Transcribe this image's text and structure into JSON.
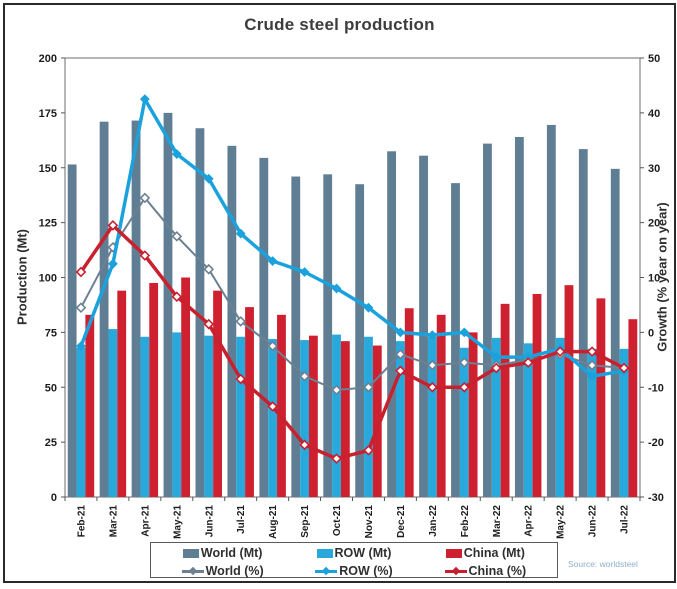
{
  "figure": {
    "title": "Crude steel production",
    "source": "Source: worldsteel"
  },
  "chart_data": {
    "type": "bar",
    "subtype": "grouped-bars-with-lines-dual-axis",
    "title": "Crude steel production",
    "categories": [
      "Feb-21",
      "Mar-21",
      "Apr-21",
      "May-21",
      "Jun-21",
      "Jul-21",
      "Aug-21",
      "Sep-21",
      "Oct-21",
      "Nov-21",
      "Dec-21",
      "Jan-22",
      "Feb-22",
      "Mar-22",
      "Apr-22",
      "May-22",
      "Jun-22",
      "Jul-22"
    ],
    "bar_series": [
      {
        "name": "World (Mt)",
        "color": "#5f7e93",
        "axis": "left",
        "values": [
          151.5,
          171,
          171.5,
          175,
          168,
          160,
          154.5,
          146,
          147,
          142.5,
          157.5,
          155.5,
          143,
          161,
          164,
          169.5,
          158.5,
          149.5
        ]
      },
      {
        "name": "ROW (Mt)",
        "color": "#29a8dc",
        "axis": "left",
        "values": [
          68,
          76.5,
          73,
          75,
          73.5,
          73,
          72,
          71.5,
          74,
          73,
          71,
          73,
          68,
          72.5,
          70,
          72.5,
          67.5,
          67.5
        ]
      },
      {
        "name": "China (Mt)",
        "color": "#cf2030",
        "axis": "left",
        "values": [
          83,
          94,
          97.5,
          100,
          94,
          86.5,
          83,
          73.5,
          71,
          69,
          86,
          83,
          75,
          88,
          92.5,
          96.5,
          90.5,
          81
        ]
      }
    ],
    "line_series": [
      {
        "name": "World (%)",
        "color": "#6d8092",
        "axis": "right",
        "marker": "diamond-open",
        "width": 2,
        "values": [
          4.5,
          15.5,
          24.5,
          17.5,
          11.5,
          2,
          -2.5,
          -8,
          -10.5,
          -10,
          -4,
          -6,
          -5.5,
          -6,
          -5,
          -4,
          -6,
          -6.5
        ]
      },
      {
        "name": "ROW (%)",
        "color": "#1ba2dc",
        "axis": "right",
        "marker": "diamond-solid",
        "width": 3.5,
        "values": [
          -2.5,
          12.5,
          42.5,
          32.5,
          28,
          18,
          13,
          11,
          8,
          4.5,
          0,
          -0.5,
          0,
          -4.5,
          -4.5,
          -3,
          -8,
          -7
        ]
      },
      {
        "name": "China (%)",
        "color": "#c9202e",
        "axis": "right",
        "marker": "diamond-open",
        "width": 3.5,
        "values": [
          11,
          19.5,
          14,
          6.5,
          1.5,
          -8.5,
          -13.5,
          -20.5,
          -23,
          -21.5,
          -7,
          -10,
          -10,
          -6.5,
          -5.5,
          -3.5,
          -3.5,
          -6.5
        ]
      }
    ],
    "left_axis": {
      "label": "Production (Mt)",
      "min": 0,
      "max": 200,
      "ticks": [
        0,
        25,
        50,
        75,
        100,
        125,
        150,
        175,
        200
      ]
    },
    "right_axis": {
      "label": "Growth (% year on year)",
      "min": -30,
      "max": 50,
      "ticks": [
        -30,
        -20,
        -10,
        0,
        10,
        20,
        30,
        40,
        50
      ]
    },
    "grid": false,
    "legend_position": "bottom",
    "legend": [
      {
        "label": "World (Mt)",
        "type": "bar",
        "color": "#5f7e93"
      },
      {
        "label": "ROW (Mt)",
        "type": "bar",
        "color": "#29a8dc"
      },
      {
        "label": "China (Mt)",
        "type": "bar",
        "color": "#cf2030"
      },
      {
        "label": "World (%)",
        "type": "line",
        "color": "#6d8092"
      },
      {
        "label": "ROW (%)",
        "type": "line",
        "color": "#1ba2dc"
      },
      {
        "label": "China (%)",
        "type": "line",
        "color": "#c9202e"
      }
    ],
    "source": "Source: worldsteel"
  }
}
